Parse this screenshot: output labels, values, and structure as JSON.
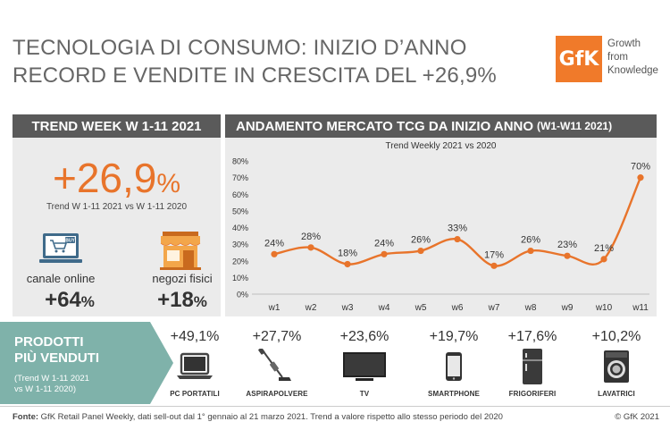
{
  "header": {
    "title_line1": "TECNOLOGIA DI CONSUMO: INIZIO D’ANNO",
    "title_line2": "RECORD E VENDITE IN CRESCITA DEL +26,9%",
    "logo_mark": "GfK",
    "logo_text_1": "Growth",
    "logo_text_2": "from",
    "logo_text_3": "Knowledge"
  },
  "left_panel": {
    "header": "TREND WEEK W 1-11 2021",
    "big_value": "+26,9",
    "big_unit": "%",
    "big_note": "Trend W 1-11 2021 vs W 1-11 2020",
    "buy_tag": "BUY",
    "online_label": "canale online",
    "online_value": "+64",
    "online_unit": "%",
    "store_label": "negozi fisici",
    "store_value": "+18",
    "store_unit": "%"
  },
  "right_panel": {
    "header_main": "ANDAMENTO MERCATO TCG DA INIZIO ANNO",
    "header_sub": "(W1-W11 2021)"
  },
  "chart_data": {
    "type": "line",
    "title": "Trend Weekly 2021 vs 2020",
    "categories": [
      "w1",
      "w2",
      "w3",
      "w4",
      "w5",
      "w6",
      "w7",
      "w8",
      "w9",
      "w10",
      "w11"
    ],
    "values": [
      24,
      28,
      18,
      24,
      26,
      33,
      17,
      26,
      23,
      21,
      70
    ],
    "data_labels": [
      "24%",
      "28%",
      "18%",
      "24%",
      "26%",
      "33%",
      "17%",
      "26%",
      "23%",
      "21%",
      "70%"
    ],
    "y_ticks": [
      "0%",
      "10%",
      "20%",
      "30%",
      "40%",
      "50%",
      "60%",
      "70%",
      "80%"
    ],
    "ylim": [
      0,
      80
    ],
    "grid": false,
    "line_color": "#e8742b"
  },
  "products": {
    "title_line1": "PRODOTTI",
    "title_line2": "PIÙ VENDUTI",
    "note_line1": "(Trend W 1-11 2021",
    "note_line2": "vs W 1-11 2020)",
    "items": [
      {
        "value": "+49,1%",
        "label": "PC PORTATILI",
        "icon": "laptop-icon"
      },
      {
        "value": "+27,7%",
        "label": "ASPIRAPOLVERE",
        "icon": "vacuum-icon"
      },
      {
        "value": "+23,6%",
        "label": "TV",
        "icon": "tv-icon"
      },
      {
        "value": "+19,7%",
        "label": "SMARTPHONE",
        "icon": "smartphone-icon"
      },
      {
        "value": "+17,6%",
        "label": "FRIGORIFERI",
        "icon": "fridge-icon"
      },
      {
        "value": "+10,2%",
        "label": "LAVATRICI",
        "icon": "washing-machine-icon"
      }
    ]
  },
  "footer": {
    "source_label": "Fonte:",
    "source_text": " GfK Retail Panel Weekly, dati sell-out dal 1° gennaio al 21 marzo 2021. Trend a valore rispetto allo stesso periodo del 2020",
    "copyright": "© GfK 2021"
  },
  "colors": {
    "accent": "#e8742b",
    "teal": "#7fb2aa",
    "header_bg": "#5a5a5a",
    "panel_bg": "#ebebeb",
    "online_icon": "#3f6a8a"
  }
}
